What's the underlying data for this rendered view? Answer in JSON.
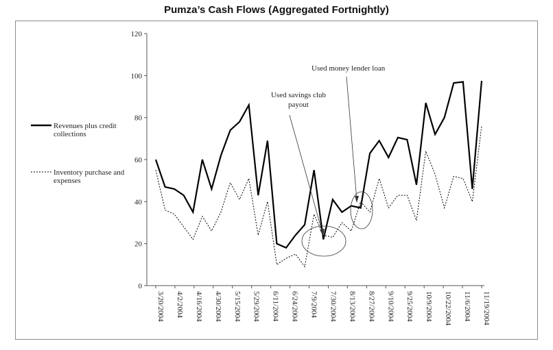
{
  "chart_data": {
    "type": "line",
    "title": "Pumza’s Cash Flows (Aggregated Fortnightly)",
    "ylim": [
      0,
      120
    ],
    "yticks": [
      0,
      20,
      40,
      60,
      80,
      100,
      120
    ],
    "x_tick_labels": [
      "3/20/2004",
      "4/2/2004",
      "4/16/2004",
      "4/30/2004",
      "5/15/2004",
      "5/29/2004",
      "6/11/2004",
      "6/24/2004",
      "7/9/2004",
      "7/30/2004",
      "8/13/2004",
      "8/27/2004",
      "9/10/2004",
      "9/25/2004",
      "10/9/2004",
      "10/22/2004",
      "11/6/2004",
      "11/19/2004"
    ],
    "legend_placement": "left",
    "series": [
      {
        "name": "Revenues plus credit collections",
        "style": "solid",
        "color": "#000000",
        "values": [
          60,
          47,
          46,
          43,
          35,
          60,
          46,
          62,
          74,
          78,
          86,
          43,
          69,
          20,
          18,
          24,
          29,
          55,
          22,
          41,
          35,
          38,
          37,
          63,
          69,
          61,
          70.5,
          69.5,
          48,
          87,
          72,
          80,
          96.5,
          97,
          46,
          97.5
        ]
      },
      {
        "name": "Inventory purchase and expenses",
        "style": "dotted",
        "color": "#000000",
        "values": [
          55,
          36,
          34,
          28,
          22,
          33,
          26,
          35,
          49,
          41,
          51,
          24,
          40,
          10,
          13,
          15,
          9,
          34,
          24,
          23,
          30,
          26,
          40,
          35,
          51,
          37,
          43,
          43,
          31,
          64,
          53,
          37,
          52,
          51,
          40,
          76
        ]
      }
    ],
    "annotations": [
      {
        "text_lines": [
          "Used money lender loan"
        ]
      },
      {
        "text_lines": [
          "Used savings club",
          "payout"
        ]
      }
    ]
  }
}
